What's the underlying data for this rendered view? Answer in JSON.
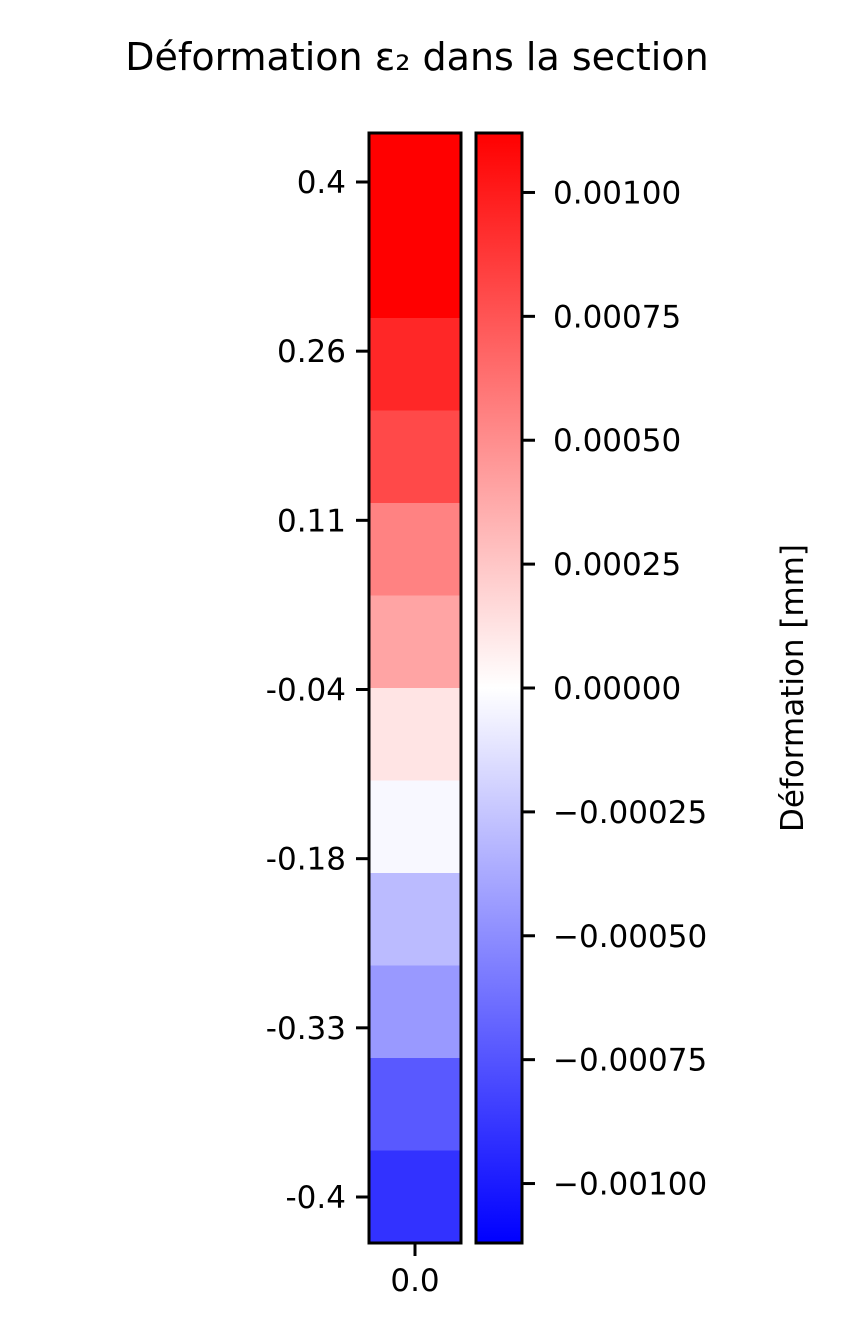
{
  "chart_data": {
    "type": "heatmap",
    "title": "Déformation ε₂ dans la section",
    "x_tick_labels": [
      "0.0"
    ],
    "y_tick_labels": [
      "0.4",
      "0.26",
      "0.11",
      "-0.04",
      "-0.18",
      "-0.33",
      "-0.4"
    ],
    "cells": [
      {
        "y": 0.4,
        "value": 0.00112
      },
      {
        "y": 0.333,
        "value": 0.00112
      },
      {
        "y": 0.267,
        "value": 0.00095
      },
      {
        "y": 0.2,
        "value": 0.0008
      },
      {
        "y": 0.133,
        "value": 0.00055
      },
      {
        "y": 0.067,
        "value": 0.0004
      },
      {
        "y": 0.0,
        "value": 0.00012
      },
      {
        "y": -0.067,
        "value": -3e-05
      },
      {
        "y": -0.133,
        "value": -0.0003
      },
      {
        "y": -0.2,
        "value": -0.00045
      },
      {
        "y": -0.267,
        "value": -0.00073
      },
      {
        "y": -0.333,
        "value": -0.0009
      }
    ],
    "colorbar": {
      "label": "Déformation [mm]",
      "colormap": "bwr",
      "range": [
        -0.00112,
        0.00112
      ],
      "ticks": [
        0.001,
        0.00075,
        0.0005,
        0.00025,
        0.0,
        -0.00025,
        -0.0005,
        -0.00075,
        -0.001
      ],
      "tick_labels": [
        "0.00100",
        "0.00075",
        "0.00050",
        "0.00025",
        "0.00000",
        "−0.00025",
        "−0.00050",
        "−0.00075",
        "−0.00100"
      ]
    }
  }
}
